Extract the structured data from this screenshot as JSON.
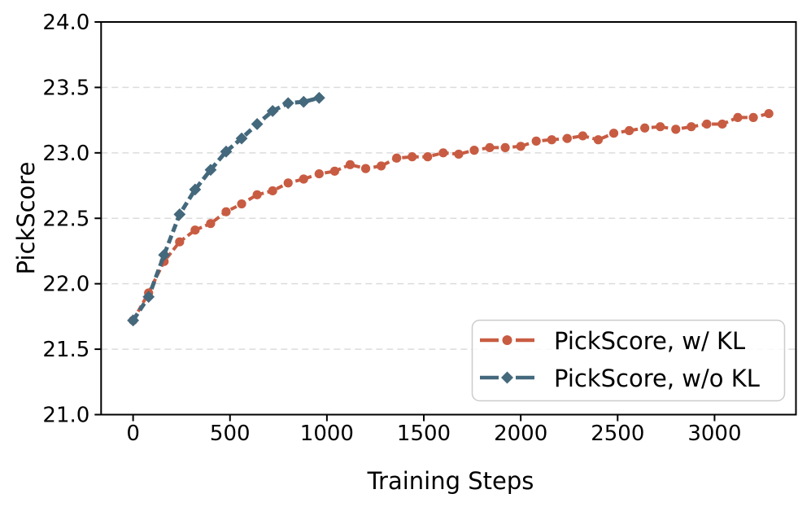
{
  "figure": {
    "background": "#ffffff",
    "spine_color": "#000000",
    "grid_color": "#dcdcdc"
  },
  "chart_data": {
    "type": "line",
    "title": "",
    "xlabel": "Training Steps",
    "ylabel": "PickScore",
    "xlim": [
      -165,
      3420
    ],
    "ylim": [
      21.0,
      24.0
    ],
    "x_ticks": [
      0,
      500,
      1000,
      1500,
      2000,
      2500,
      3000
    ],
    "y_ticks": [
      21.0,
      21.5,
      22.0,
      22.5,
      23.0,
      23.5,
      24.0
    ],
    "grid": "horizontal-dashed",
    "legend_position": "lower-right",
    "series": [
      {
        "name": "PickScore, w/ KL",
        "color": "#C85C42",
        "marker": "circle",
        "line_style": "dashed",
        "x": [
          0,
          80,
          160,
          240,
          320,
          400,
          480,
          560,
          640,
          720,
          800,
          880,
          960,
          1040,
          1120,
          1200,
          1280,
          1360,
          1440,
          1520,
          1600,
          1680,
          1760,
          1840,
          1920,
          2000,
          2080,
          2160,
          2240,
          2320,
          2400,
          2480,
          2560,
          2640,
          2720,
          2800,
          2880,
          2960,
          3040,
          3120,
          3200,
          3280
        ],
        "y": [
          21.72,
          21.93,
          22.17,
          22.32,
          22.41,
          22.46,
          22.55,
          22.61,
          22.68,
          22.71,
          22.77,
          22.8,
          22.84,
          22.86,
          22.91,
          22.88,
          22.9,
          22.96,
          22.97,
          22.97,
          23.0,
          22.99,
          23.02,
          23.04,
          23.04,
          23.05,
          23.09,
          23.1,
          23.11,
          23.13,
          23.1,
          23.15,
          23.17,
          23.19,
          23.2,
          23.18,
          23.2,
          23.22,
          23.22,
          23.27,
          23.27,
          23.3
        ]
      },
      {
        "name": "PickScore, w/o KL",
        "color": "#44687C",
        "marker": "diamond",
        "line_style": "dashed",
        "x": [
          0,
          80,
          160,
          240,
          320,
          400,
          480,
          560,
          640,
          720,
          800,
          880,
          960
        ],
        "y": [
          21.72,
          21.9,
          22.22,
          22.53,
          22.72,
          22.87,
          23.01,
          23.11,
          23.22,
          23.32,
          23.38,
          23.39,
          23.42
        ]
      }
    ]
  }
}
